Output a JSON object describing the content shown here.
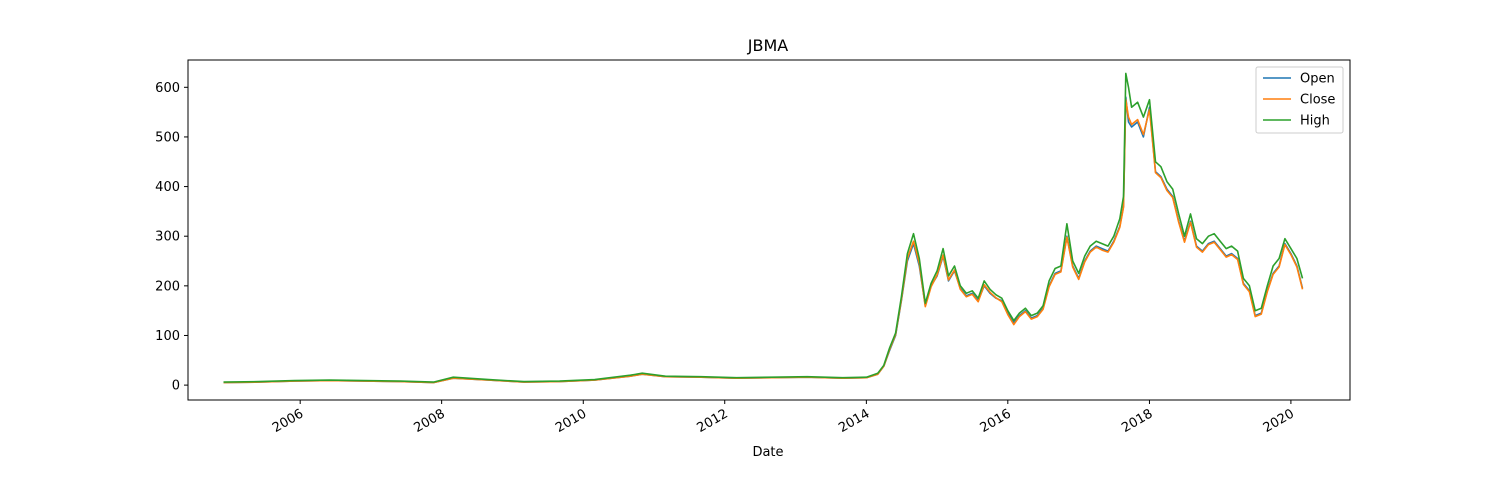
{
  "chart_data": {
    "type": "line",
    "title": "JBMA",
    "xlabel": "Date",
    "ylabel": "",
    "x_ticks": [
      "2006",
      "2008",
      "2010",
      "2012",
      "2014",
      "2016",
      "2018",
      "2020"
    ],
    "y_ticks": [
      0,
      100,
      200,
      300,
      400,
      500,
      600
    ],
    "xlim": [
      "2004-06-01",
      "2020-11-01"
    ],
    "ylim": [
      -30,
      655
    ],
    "grid": false,
    "legend_position": "top-right",
    "x": [
      "2004-12-01",
      "2005-06-01",
      "2005-12-01",
      "2006-06-01",
      "2006-12-01",
      "2007-06-01",
      "2007-11-20",
      "2008-03-01",
      "2008-09-01",
      "2009-03-01",
      "2009-09-01",
      "2010-03-01",
      "2010-09-01",
      "2010-11-01",
      "2011-03-01",
      "2011-09-01",
      "2012-03-01",
      "2012-09-01",
      "2013-03-01",
      "2013-09-01",
      "2014-01-01",
      "2014-03-01",
      "2014-04-01",
      "2014-05-01",
      "2014-06-01",
      "2014-07-01",
      "2014-08-01",
      "2014-09-01",
      "2014-10-01",
      "2014-11-01",
      "2014-12-01",
      "2015-01-01",
      "2015-02-01",
      "2015-03-01",
      "2015-04-01",
      "2015-05-01",
      "2015-06-01",
      "2015-07-01",
      "2015-08-01",
      "2015-09-01",
      "2015-10-01",
      "2015-11-01",
      "2015-12-01",
      "2016-01-01",
      "2016-02-01",
      "2016-03-01",
      "2016-04-01",
      "2016-05-01",
      "2016-06-01",
      "2016-07-01",
      "2016-08-01",
      "2016-09-01",
      "2016-10-01",
      "2016-11-01",
      "2016-12-01",
      "2017-01-01",
      "2017-02-01",
      "2017-03-01",
      "2017-04-01",
      "2017-05-01",
      "2017-06-01",
      "2017-07-01",
      "2017-08-01",
      "2017-08-20",
      "2017-09-01",
      "2017-09-15",
      "2017-10-01",
      "2017-11-01",
      "2017-12-01",
      "2018-01-01",
      "2018-02-01",
      "2018-03-01",
      "2018-04-01",
      "2018-05-01",
      "2018-06-01",
      "2018-07-01",
      "2018-08-01",
      "2018-09-01",
      "2018-10-01",
      "2018-11-01",
      "2018-12-01",
      "2019-01-01",
      "2019-02-01",
      "2019-03-01",
      "2019-04-01",
      "2019-05-01",
      "2019-06-01",
      "2019-07-01",
      "2019-08-01",
      "2019-09-01",
      "2019-10-01",
      "2019-11-01",
      "2019-12-01",
      "2020-01-01",
      "2020-02-01",
      "2020-03-01"
    ],
    "series": [
      {
        "name": "Open",
        "color": "#1f77b4",
        "values": [
          5,
          6,
          8,
          9,
          8,
          7,
          5,
          14,
          10,
          6,
          7,
          10,
          18,
          22,
          17,
          16,
          14,
          15,
          16,
          14,
          15,
          22,
          38,
          70,
          100,
          170,
          250,
          285,
          240,
          160,
          200,
          220,
          260,
          210,
          230,
          195,
          180,
          185,
          170,
          200,
          185,
          175,
          170,
          145,
          125,
          140,
          150,
          135,
          140,
          155,
          200,
          225,
          230,
          300,
          240,
          215,
          250,
          270,
          280,
          275,
          270,
          290,
          320,
          360,
          580,
          530,
          520,
          530,
          500,
          560,
          430,
          420,
          395,
          380,
          330,
          290,
          330,
          280,
          270,
          285,
          290,
          275,
          260,
          265,
          255,
          205,
          190,
          140,
          145,
          190,
          225,
          240,
          285,
          265,
          240,
          195
        ]
      },
      {
        "name": "Close",
        "color": "#ff7f0e",
        "values": [
          5,
          6,
          8,
          9,
          8,
          7,
          5,
          14,
          10,
          6,
          7,
          10,
          18,
          22,
          17,
          16,
          14,
          15,
          16,
          14,
          15,
          22,
          38,
          72,
          102,
          172,
          255,
          290,
          245,
          158,
          198,
          222,
          262,
          212,
          232,
          193,
          178,
          183,
          168,
          202,
          187,
          176,
          168,
          142,
          122,
          138,
          148,
          133,
          138,
          153,
          198,
          223,
          228,
          298,
          238,
          213,
          248,
          268,
          278,
          272,
          268,
          288,
          318,
          358,
          575,
          540,
          525,
          535,
          505,
          555,
          428,
          418,
          392,
          378,
          328,
          288,
          328,
          278,
          268,
          283,
          288,
          273,
          258,
          263,
          253,
          203,
          188,
          138,
          143,
          188,
          223,
          238,
          283,
          263,
          238,
          193
        ]
      },
      {
        "name": "High",
        "color": "#2ca02c",
        "values": [
          6,
          7,
          9,
          10,
          9,
          8,
          6,
          16,
          11,
          7,
          8,
          11,
          20,
          24,
          18,
          17,
          15,
          16,
          17,
          15,
          16,
          24,
          40,
          75,
          105,
          178,
          265,
          305,
          255,
          165,
          205,
          230,
          275,
          220,
          240,
          200,
          185,
          190,
          175,
          210,
          193,
          182,
          175,
          150,
          130,
          145,
          155,
          140,
          145,
          160,
          210,
          235,
          240,
          325,
          250,
          225,
          260,
          280,
          290,
          285,
          280,
          300,
          335,
          380,
          628,
          600,
          560,
          570,
          540,
          575,
          450,
          440,
          410,
          395,
          345,
          300,
          345,
          295,
          285,
          300,
          305,
          290,
          275,
          280,
          270,
          215,
          200,
          150,
          155,
          200,
          240,
          255,
          295,
          275,
          255,
          215
        ]
      }
    ]
  }
}
